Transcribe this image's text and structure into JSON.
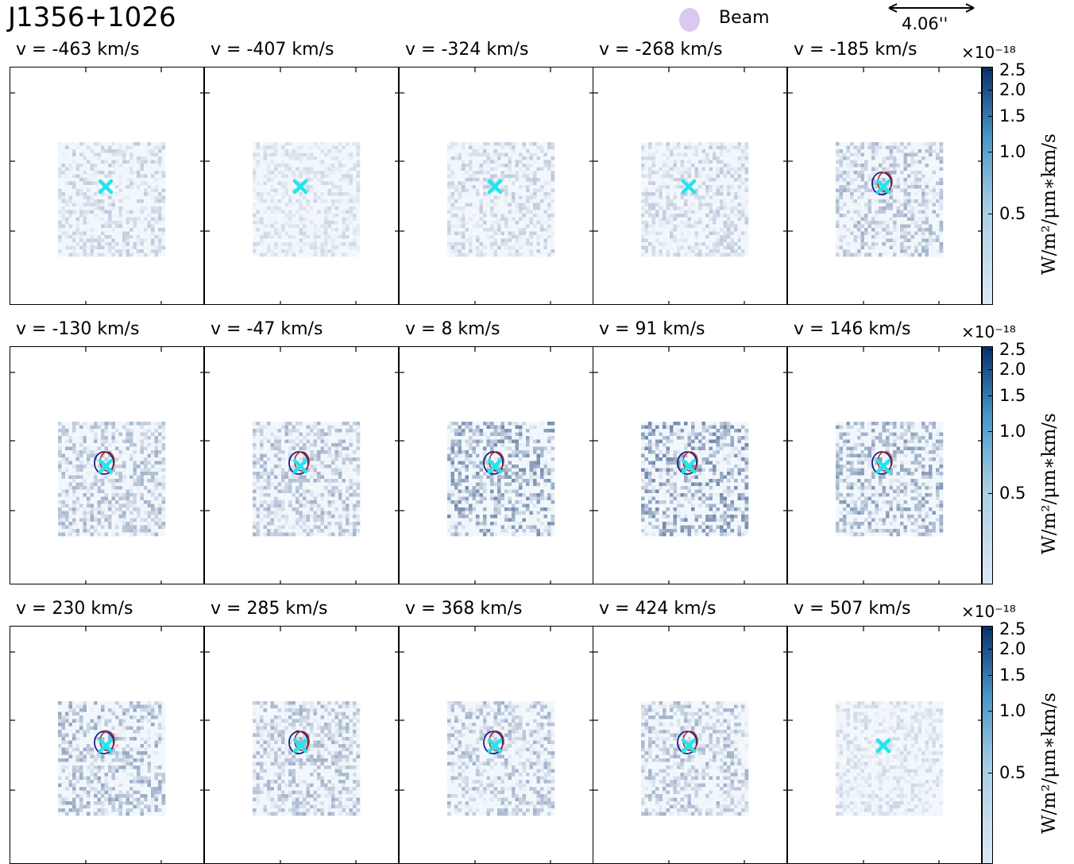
{
  "title": "J1356+1026",
  "legend": {
    "label": "Beam",
    "color": "#d9c8f0"
  },
  "scalebar": {
    "label": "4.06''"
  },
  "colorbar": {
    "exponent": "×10⁻¹⁸",
    "ticks": [
      "2.5",
      "2.0",
      "1.5",
      "1.0",
      "0.5"
    ],
    "tick_values": [
      2.5,
      2.0,
      1.5,
      1.0,
      0.5
    ],
    "label": "W/m²/μm∗km/s",
    "cmap": "Blues"
  },
  "chart_data": {
    "type": "heatmap",
    "marker_color": "#22e5ee",
    "blue_contour_color": "#1a237e",
    "red_contour_color": "#b22222",
    "panels": [
      {
        "velocity": "v = -463 km/s",
        "level": 0.2
      },
      {
        "velocity": "v = -407 km/s",
        "level": 0.15
      },
      {
        "velocity": "v = -324 km/s",
        "level": 0.2
      },
      {
        "velocity": "v = -268 km/s",
        "level": 0.2
      },
      {
        "velocity": "v = -185 km/s",
        "level": 0.3
      },
      {
        "velocity": "v = -130 km/s",
        "level": 0.3
      },
      {
        "velocity": "v = -47 km/s",
        "level": 0.3
      },
      {
        "velocity": "v = 8 km/s",
        "level": 0.45
      },
      {
        "velocity": "v = 91 km/s",
        "level": 0.5
      },
      {
        "velocity": "v = 146 km/s",
        "level": 0.4
      },
      {
        "velocity": "v = 230 km/s",
        "level": 0.35
      },
      {
        "velocity": "v = 285 km/s",
        "level": 0.3
      },
      {
        "velocity": "v = 368 km/s",
        "level": 0.3
      },
      {
        "velocity": "v = 424 km/s",
        "level": 0.3
      },
      {
        "velocity": "v = 507 km/s",
        "level": 0.15
      }
    ]
  }
}
